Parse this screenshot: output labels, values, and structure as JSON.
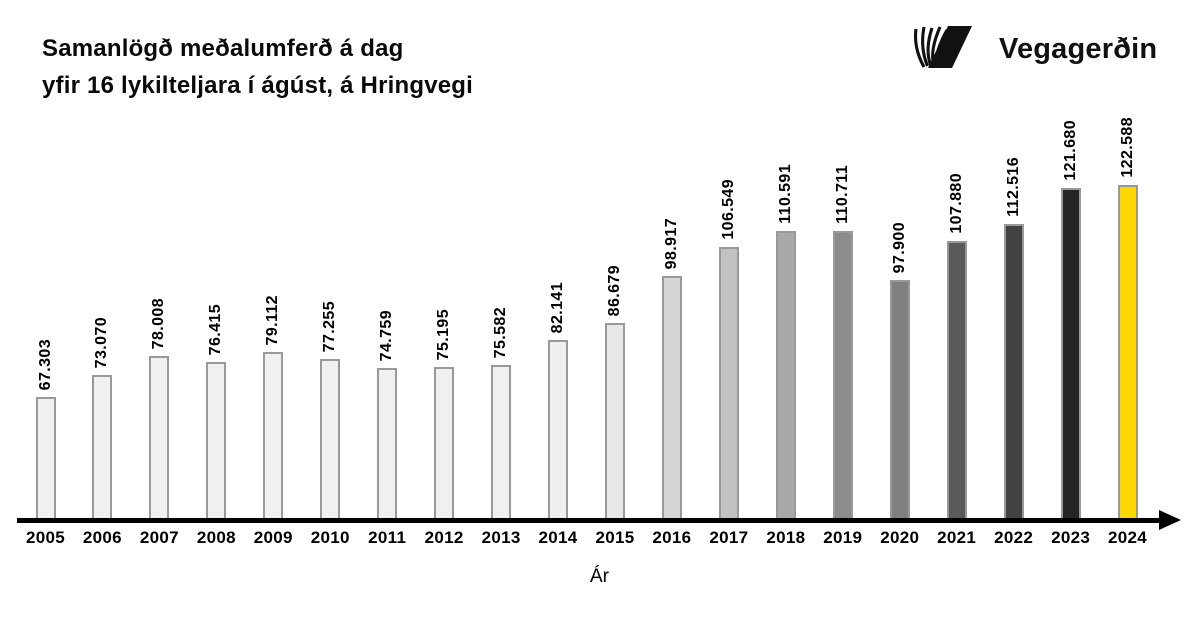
{
  "header": {
    "title_line1": "Samanlögð meðalumferð á dag",
    "title_line2": "yfir 16 lykilteljara í ágúst, á Hringvegi"
  },
  "logo": {
    "text": "Vegagerðin",
    "icon": "vegagerdin-v-stripes-mark",
    "color": "#111111"
  },
  "chart_data": {
    "type": "bar",
    "title": "Samanlögð meðalumferð á dag yfir 16 lykilteljara í ágúst, á Hringvegi",
    "xlabel": "Ár",
    "ylabel": "",
    "categories": [
      "2005",
      "2006",
      "2007",
      "2008",
      "2009",
      "2010",
      "2011",
      "2012",
      "2013",
      "2014",
      "2015",
      "2016",
      "2017",
      "2018",
      "2019",
      "2020",
      "2021",
      "2022",
      "2023",
      "2024"
    ],
    "values": [
      67303,
      73070,
      78008,
      76415,
      79112,
      77255,
      74759,
      75195,
      75582,
      82141,
      86679,
      98917,
      106549,
      110591,
      110711,
      97900,
      107880,
      112516,
      121680,
      122588
    ],
    "value_labels": [
      "67.303",
      "73.070",
      "78.008",
      "76.415",
      "79.112",
      "77.255",
      "74.759",
      "75.195",
      "75.582",
      "82.141",
      "86.679",
      "98.917",
      "106.549",
      "110.591",
      "110.711",
      "97.900",
      "107.880",
      "112.516",
      "121.680",
      "122.588"
    ],
    "bar_colors": [
      "#f0f0f0",
      "#f0f0f0",
      "#f0f0f0",
      "#f0f0f0",
      "#f0f0f0",
      "#f0f0f0",
      "#f0f0f0",
      "#f0f0f0",
      "#f0f0f0",
      "#efefef",
      "#e8e8e8",
      "#d6d6d6",
      "#c2c2c2",
      "#a9a9a9",
      "#8c8c8c",
      "#7f7f7f",
      "#5a5a5a",
      "#424242",
      "#242424",
      "#fdd700"
    ],
    "bar_border_color": "#999999",
    "axis_color": "#000000",
    "value_label_rotation_deg": 90,
    "grid": false,
    "legend": false,
    "y_axis_visible": false,
    "y_baseline_value_approx": 35750,
    "highlight": {
      "category": "2024",
      "color": "#fdd700"
    }
  }
}
